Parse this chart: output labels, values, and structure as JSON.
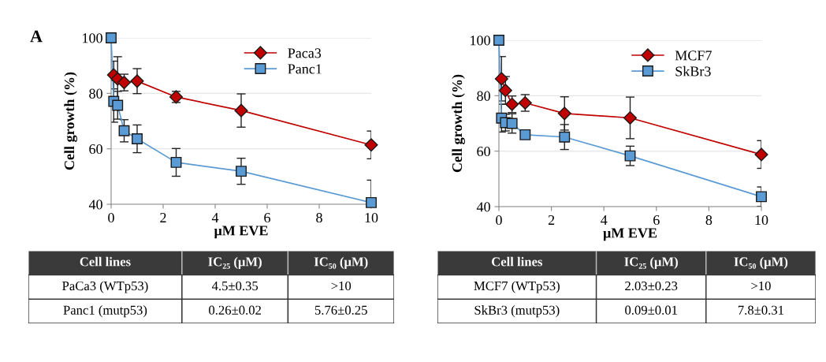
{
  "chart_data": [
    {
      "type": "line",
      "xlabel": "μM EVE",
      "ylabel": "Cell growth (%)",
      "xlim": [
        0,
        10
      ],
      "ylim": [
        40,
        100
      ],
      "xticks": [
        0,
        2,
        4,
        6,
        8,
        10
      ],
      "yticks": [
        40,
        60,
        80,
        100
      ],
      "grid": "y",
      "legend": "top right",
      "line_style": "solid",
      "annotations": [
        "A",
        "Cell lines",
        "IC₂₅ (μM)",
        "IC₅₀ (μM)",
        "PaCa3 (WTp53)",
        "4.5±0.35",
        ">10",
        "Panc1 (mutp53)",
        "0.26±0.02",
        "5.76±0.25"
      ],
      "x": [
        0,
        0.1,
        0.25,
        0.5,
        1,
        2.5,
        5,
        10
      ],
      "series": [
        {
          "name": "Paca3",
          "color": "#c00000",
          "marker": "diamond",
          "values": [
            null,
            86.6,
            85.2,
            83.9,
            84.4,
            78.7,
            73.8,
            61.4
          ],
          "errors": [
            null,
            5,
            8,
            3,
            4.5,
            2,
            6,
            5
          ]
        },
        {
          "name": "Panc1",
          "color": "#5b9bd5",
          "marker": "square",
          "values": [
            100,
            77.1,
            75.7,
            66.5,
            63.6,
            55.1,
            51.9,
            40.6
          ],
          "errors": [
            null,
            7.5,
            5,
            4,
            5,
            5,
            4.7,
            [
              40.6,
              48.7
            ]
          ]
        }
      ]
    },
    {
      "type": "line",
      "xlabel": "μM EVE",
      "ylabel": "Cell growth (%)",
      "xlim": [
        0,
        10
      ],
      "ylim": [
        40,
        100
      ],
      "xticks": [
        0,
        2,
        4,
        6,
        8,
        10
      ],
      "yticks": [
        40,
        60,
        80,
        100
      ],
      "grid": "y",
      "legend": "top right",
      "line_style": "solid",
      "annotations": [
        "Cell lines",
        "IC₂₅ (μM)",
        "IC₅₀ (μM)",
        "MCF7 (WTp53)",
        "2.03±0.23",
        ">10",
        "SkBr3 (mutp53)",
        "0.09±0.01",
        "7.8±0.31"
      ],
      "x": [
        0,
        0.1,
        0.25,
        0.5,
        1,
        2.5,
        5,
        10
      ],
      "series": [
        {
          "name": "MCF7",
          "color": "#c00000",
          "marker": "diamond",
          "values": [
            null,
            86.1,
            81.9,
            76.9,
            77.4,
            73.6,
            72.0,
            58.8
          ],
          "errors": [
            null,
            8,
            5,
            3,
            3,
            6,
            7.5,
            5
          ]
        },
        {
          "name": "SkBr3",
          "color": "#5b9bd5",
          "marker": "square",
          "values": [
            100,
            71.9,
            70.3,
            70.0,
            65.9,
            65.1,
            58.3,
            43.6
          ],
          "errors": [
            null,
            5,
            3,
            3.5,
            null,
            4.5,
            3.5,
            3.5
          ]
        }
      ]
    }
  ]
}
